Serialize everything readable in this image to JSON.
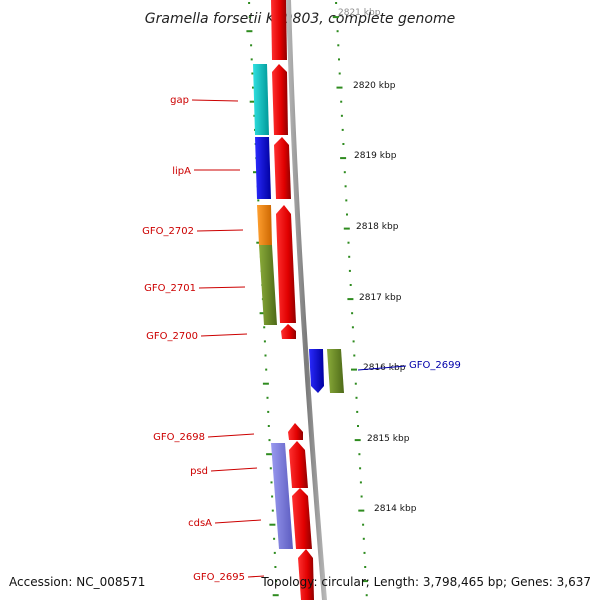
{
  "title": "Gramella forsetii KT0803, complete genome",
  "footer": {
    "accession": "Accession: NC_008571",
    "topology": "Topology: circular; Length: 3,798,465 bp; Genes: 3,637"
  },
  "colors": {
    "background": "#ffffff",
    "backbone": "#8c8c8c",
    "forward_strand_gene": "#ff0000",
    "tick": "#2e8b1f",
    "label_red": "#cc0000",
    "label_blue": "#0000aa"
  },
  "kbp_marks": [
    {
      "label": "2821 kbp"
    },
    {
      "label": "2820 kbp"
    },
    {
      "label": "2819 kbp"
    },
    {
      "label": "2818 kbp"
    },
    {
      "label": "2817 kbp"
    },
    {
      "label": "2816 kbp"
    },
    {
      "label": "2815 kbp"
    },
    {
      "label": "2814 kbp"
    }
  ],
  "gene_labels": [
    {
      "name": "gap",
      "color": "#cc0000"
    },
    {
      "name": "lipA",
      "color": "#cc0000"
    },
    {
      "name": "GFO_2702",
      "color": "#cc0000"
    },
    {
      "name": "GFO_2701",
      "color": "#cc0000"
    },
    {
      "name": "GFO_2700",
      "color": "#cc0000"
    },
    {
      "name": "GFO_2699",
      "color": "#0000aa"
    },
    {
      "name": "GFO_2698",
      "color": "#cc0000"
    },
    {
      "name": "psd",
      "color": "#cc0000"
    },
    {
      "name": "cdsA",
      "color": "#cc0000"
    },
    {
      "name": "GFO_2695",
      "color": "#cc0000"
    }
  ],
  "feature_colors": {
    "cyan": "#00cccc",
    "blue": "#0000ee",
    "orange": "#ff8c00",
    "olive": "#6b8e23",
    "lavender": "#8080e0",
    "red": "#ff0000"
  }
}
